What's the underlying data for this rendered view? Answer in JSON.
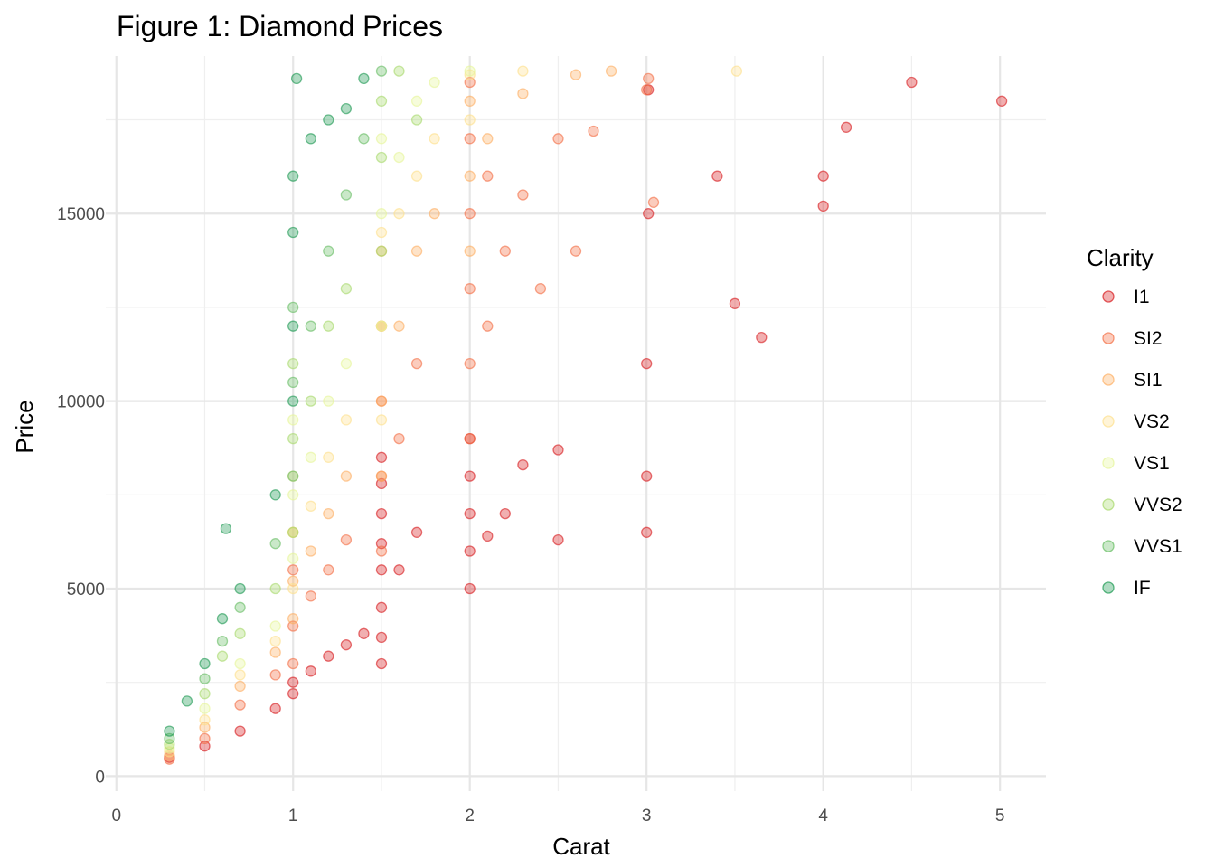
{
  "chart_data": {
    "type": "scatter",
    "title": "Figure 1: Diamond Prices",
    "xlabel": "Carat",
    "ylabel": "Price",
    "xlim": [
      -0.06,
      5.26
    ],
    "ylim": [
      -400,
      19200
    ],
    "x_ticks": [
      0,
      1,
      2,
      3,
      4,
      5
    ],
    "y_ticks": [
      0,
      5000,
      10000,
      15000
    ],
    "grid": true,
    "legend": {
      "title": "Clarity",
      "position": "right",
      "entries": [
        {
          "name": "I1",
          "color": "#d7191c"
        },
        {
          "name": "SI2",
          "color": "#f46d43"
        },
        {
          "name": "SI1",
          "color": "#fdae61"
        },
        {
          "name": "VS2",
          "color": "#fee08b"
        },
        {
          "name": "VS1",
          "color": "#e6f598"
        },
        {
          "name": "VVS2",
          "color": "#a6d96a"
        },
        {
          "name": "VVS1",
          "color": "#66bd63"
        },
        {
          "name": "IF",
          "color": "#1a9850"
        }
      ]
    },
    "series": [
      {
        "name": "I1",
        "color": "#d7191c",
        "points": [
          [
            0.3,
            500
          ],
          [
            0.5,
            800
          ],
          [
            0.7,
            1200
          ],
          [
            0.9,
            1800
          ],
          [
            1.0,
            2200
          ],
          [
            1.0,
            2500
          ],
          [
            1.1,
            2800
          ],
          [
            1.2,
            3200
          ],
          [
            1.3,
            3500
          ],
          [
            1.4,
            3800
          ],
          [
            1.5,
            3000
          ],
          [
            1.5,
            3700
          ],
          [
            1.5,
            4500
          ],
          [
            1.5,
            5500
          ],
          [
            1.5,
            6200
          ],
          [
            1.5,
            7000
          ],
          [
            1.5,
            7800
          ],
          [
            1.5,
            8500
          ],
          [
            1.6,
            5500
          ],
          [
            1.7,
            6500
          ],
          [
            2.0,
            5000
          ],
          [
            2.0,
            6000
          ],
          [
            2.0,
            7000
          ],
          [
            2.0,
            8000
          ],
          [
            2.0,
            9000
          ],
          [
            2.1,
            6400
          ],
          [
            2.2,
            7000
          ],
          [
            2.3,
            8300
          ],
          [
            2.5,
            6300
          ],
          [
            2.5,
            8700
          ],
          [
            3.0,
            6500
          ],
          [
            3.0,
            8000
          ],
          [
            3.0,
            11000
          ],
          [
            3.01,
            15000
          ],
          [
            3.01,
            18300
          ],
          [
            3.4,
            16000
          ],
          [
            3.5,
            12600
          ],
          [
            3.65,
            11700
          ],
          [
            4.0,
            15200
          ],
          [
            4.0,
            16000
          ],
          [
            4.13,
            17300
          ],
          [
            4.5,
            18500
          ],
          [
            5.01,
            18000
          ]
        ]
      },
      {
        "name": "SI2",
        "color": "#f46d43",
        "points": [
          [
            0.3,
            450
          ],
          [
            0.5,
            1000
          ],
          [
            0.7,
            1900
          ],
          [
            0.9,
            2700
          ],
          [
            1.0,
            3000
          ],
          [
            1.0,
            4000
          ],
          [
            1.0,
            5500
          ],
          [
            1.1,
            4800
          ],
          [
            1.2,
            5500
          ],
          [
            1.3,
            6300
          ],
          [
            1.5,
            6000
          ],
          [
            1.5,
            8000
          ],
          [
            1.5,
            10000
          ],
          [
            1.5,
            12000
          ],
          [
            1.6,
            9000
          ],
          [
            1.7,
            11000
          ],
          [
            2.0,
            9000
          ],
          [
            2.0,
            11000
          ],
          [
            2.0,
            13000
          ],
          [
            2.0,
            15000
          ],
          [
            2.0,
            17000
          ],
          [
            2.0,
            18500
          ],
          [
            2.1,
            12000
          ],
          [
            2.1,
            16000
          ],
          [
            2.2,
            14000
          ],
          [
            2.3,
            15500
          ],
          [
            2.4,
            13000
          ],
          [
            2.5,
            17000
          ],
          [
            2.6,
            14000
          ],
          [
            2.7,
            17200
          ],
          [
            3.0,
            18300
          ],
          [
            3.01,
            18600
          ],
          [
            3.04,
            15300
          ]
        ]
      },
      {
        "name": "SI1",
        "color": "#fdae61",
        "points": [
          [
            0.3,
            550
          ],
          [
            0.5,
            1300
          ],
          [
            0.7,
            2400
          ],
          [
            0.9,
            3300
          ],
          [
            1.0,
            4200
          ],
          [
            1.0,
            5200
          ],
          [
            1.0,
            6500
          ],
          [
            1.1,
            6000
          ],
          [
            1.2,
            7000
          ],
          [
            1.3,
            8000
          ],
          [
            1.5,
            8000
          ],
          [
            1.5,
            10000
          ],
          [
            1.5,
            12000
          ],
          [
            1.5,
            14000
          ],
          [
            1.6,
            12000
          ],
          [
            1.7,
            14000
          ],
          [
            1.8,
            15000
          ],
          [
            2.0,
            14000
          ],
          [
            2.0,
            16000
          ],
          [
            2.0,
            18000
          ],
          [
            2.1,
            17000
          ],
          [
            2.3,
            18200
          ],
          [
            2.6,
            18700
          ],
          [
            2.8,
            18800
          ]
        ]
      },
      {
        "name": "VS2",
        "color": "#fee08b",
        "points": [
          [
            0.3,
            650
          ],
          [
            0.5,
            1500
          ],
          [
            0.7,
            2700
          ],
          [
            0.9,
            3600
          ],
          [
            1.0,
            5000
          ],
          [
            1.0,
            6500
          ],
          [
            1.0,
            8000
          ],
          [
            1.1,
            7200
          ],
          [
            1.2,
            8500
          ],
          [
            1.3,
            9500
          ],
          [
            1.5,
            9500
          ],
          [
            1.5,
            12000
          ],
          [
            1.5,
            14500
          ],
          [
            1.6,
            15000
          ],
          [
            1.7,
            16000
          ],
          [
            1.8,
            17000
          ],
          [
            2.0,
            17500
          ],
          [
            2.0,
            18700
          ],
          [
            2.3,
            18800
          ],
          [
            3.51,
            18800
          ]
        ]
      },
      {
        "name": "VS1",
        "color": "#e6f598",
        "points": [
          [
            0.3,
            750
          ],
          [
            0.5,
            1800
          ],
          [
            0.7,
            3000
          ],
          [
            0.9,
            4000
          ],
          [
            1.0,
            5800
          ],
          [
            1.0,
            7500
          ],
          [
            1.0,
            9500
          ],
          [
            1.1,
            8500
          ],
          [
            1.2,
            10000
          ],
          [
            1.3,
            11000
          ],
          [
            1.5,
            12000
          ],
          [
            1.5,
            15000
          ],
          [
            1.5,
            17000
          ],
          [
            1.6,
            16500
          ],
          [
            1.7,
            18000
          ],
          [
            1.8,
            18500
          ],
          [
            2.0,
            18800
          ]
        ]
      },
      {
        "name": "VVS2",
        "color": "#a6d96a",
        "points": [
          [
            0.3,
            850
          ],
          [
            0.5,
            2200
          ],
          [
            0.6,
            3200
          ],
          [
            0.7,
            3800
          ],
          [
            0.9,
            5000
          ],
          [
            1.0,
            6500
          ],
          [
            1.0,
            9000
          ],
          [
            1.0,
            11000
          ],
          [
            1.1,
            10000
          ],
          [
            1.2,
            12000
          ],
          [
            1.3,
            13000
          ],
          [
            1.5,
            14000
          ],
          [
            1.5,
            16500
          ],
          [
            1.5,
            18000
          ],
          [
            1.6,
            18800
          ],
          [
            1.7,
            17500
          ]
        ]
      },
      {
        "name": "VVS1",
        "color": "#66bd63",
        "points": [
          [
            0.3,
            1000
          ],
          [
            0.5,
            2600
          ],
          [
            0.6,
            3600
          ],
          [
            0.7,
            4500
          ],
          [
            0.9,
            6200
          ],
          [
            1.0,
            8000
          ],
          [
            1.0,
            10500
          ],
          [
            1.0,
            12500
          ],
          [
            1.1,
            12000
          ],
          [
            1.2,
            14000
          ],
          [
            1.3,
            15500
          ],
          [
            1.4,
            17000
          ],
          [
            1.5,
            18800
          ]
        ]
      },
      {
        "name": "IF",
        "color": "#1a9850",
        "points": [
          [
            0.3,
            1200
          ],
          [
            0.4,
            2000
          ],
          [
            0.5,
            3000
          ],
          [
            0.6,
            4200
          ],
          [
            0.62,
            6600
          ],
          [
            0.7,
            5000
          ],
          [
            0.9,
            7500
          ],
          [
            1.0,
            10000
          ],
          [
            1.0,
            12000
          ],
          [
            1.0,
            14500
          ],
          [
            1.0,
            16000
          ],
          [
            1.02,
            18600
          ],
          [
            1.1,
            17000
          ],
          [
            1.2,
            17500
          ],
          [
            1.3,
            17800
          ],
          [
            1.4,
            18600
          ]
        ]
      }
    ]
  }
}
